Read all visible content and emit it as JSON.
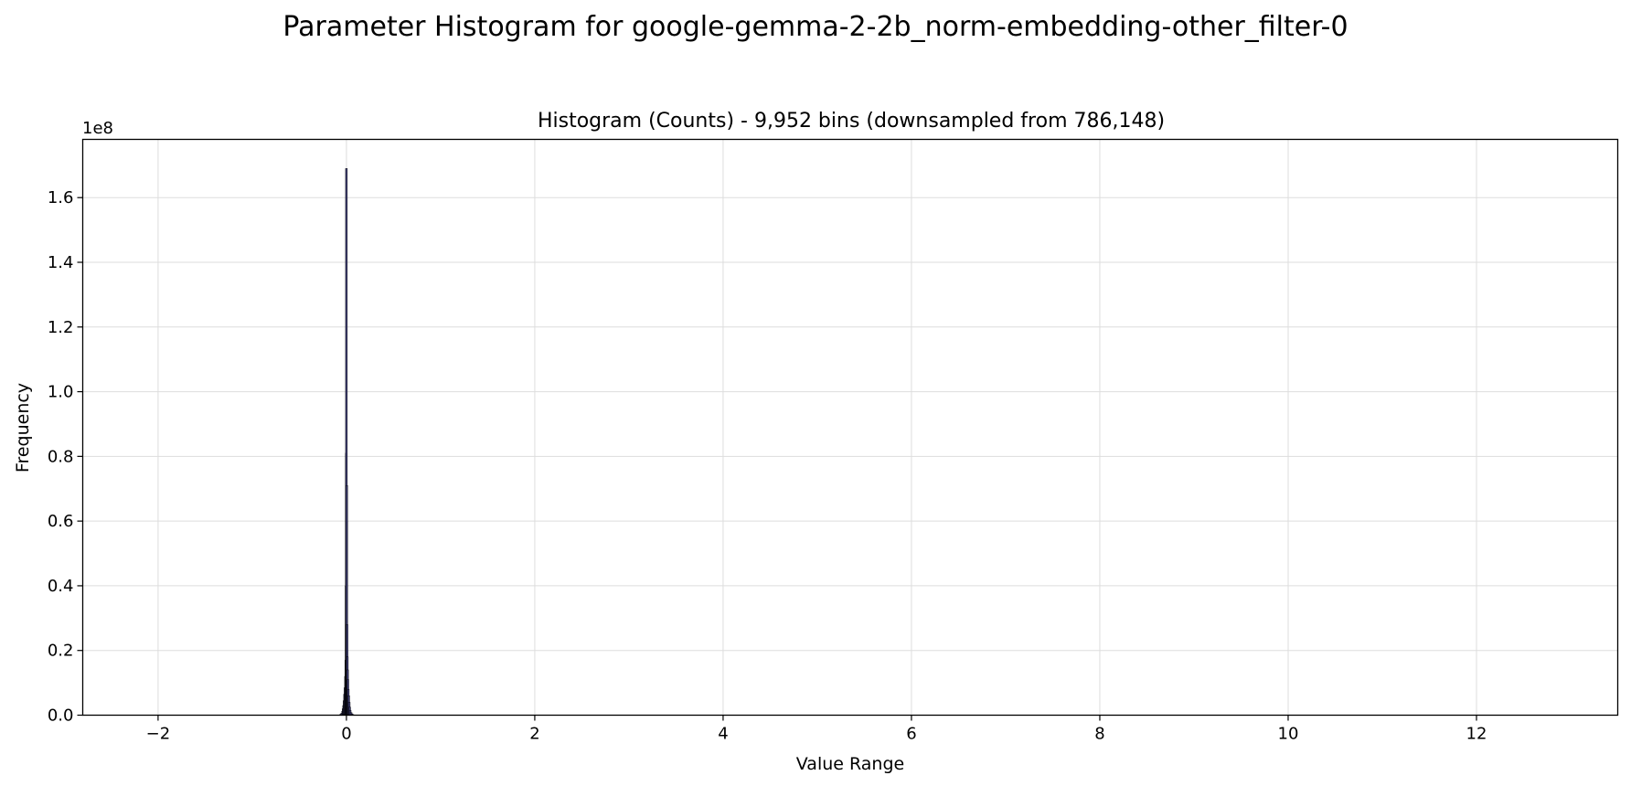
{
  "figure": {
    "suptitle": "Parameter Histogram for google-gemma-2-2b_norm-embedding-other_filter-0"
  },
  "colors": {
    "bar_fill": "#3b3b6e",
    "bar_edge": "#000000",
    "grid": "#dddddd",
    "axes": "#000000"
  },
  "chart_data": {
    "type": "bar",
    "title": "Histogram (Counts) - 9,952 bins (downsampled from 786,148)",
    "xlabel": "Value Range",
    "ylabel": "Frequency",
    "y_offset_label": "1e8",
    "xlim": [
      -2.8,
      13.5
    ],
    "ylim": [
      0,
      178000000
    ],
    "grid": true,
    "legend": "none",
    "x_ticks": [
      -2,
      0,
      2,
      4,
      6,
      8,
      10,
      12
    ],
    "x_tick_labels": [
      "−2",
      "0",
      "2",
      "4",
      "6",
      "8",
      "10",
      "12"
    ],
    "y_ticks": [
      0,
      20000000,
      40000000,
      60000000,
      80000000,
      100000000,
      120000000,
      140000000,
      160000000
    ],
    "y_tick_labels": [
      "0.0",
      "0.2",
      "0.4",
      "0.6",
      "0.8",
      "1.0",
      "1.2",
      "1.4",
      "1.6"
    ],
    "bins": {
      "x": [
        -0.06,
        -0.05,
        -0.04,
        -0.035,
        -0.03,
        -0.025,
        -0.02,
        -0.015,
        -0.01,
        -0.007,
        -0.004,
        -0.002,
        0.0,
        0.002,
        0.004,
        0.007,
        0.01,
        0.013,
        0.016,
        0.02,
        0.025,
        0.03,
        0.035,
        0.04,
        0.05,
        0.06,
        0.07
      ],
      "counts": [
        300000,
        600000,
        1200000,
        2000000,
        3000000,
        4500000,
        6500000,
        8500000,
        12000000,
        17000000,
        40000000,
        81000000,
        169000000,
        60000000,
        71000000,
        28000000,
        18000000,
        14000000,
        11000000,
        8000000,
        6000000,
        4000000,
        2500000,
        1500000,
        800000,
        400000,
        150000
      ]
    }
  }
}
